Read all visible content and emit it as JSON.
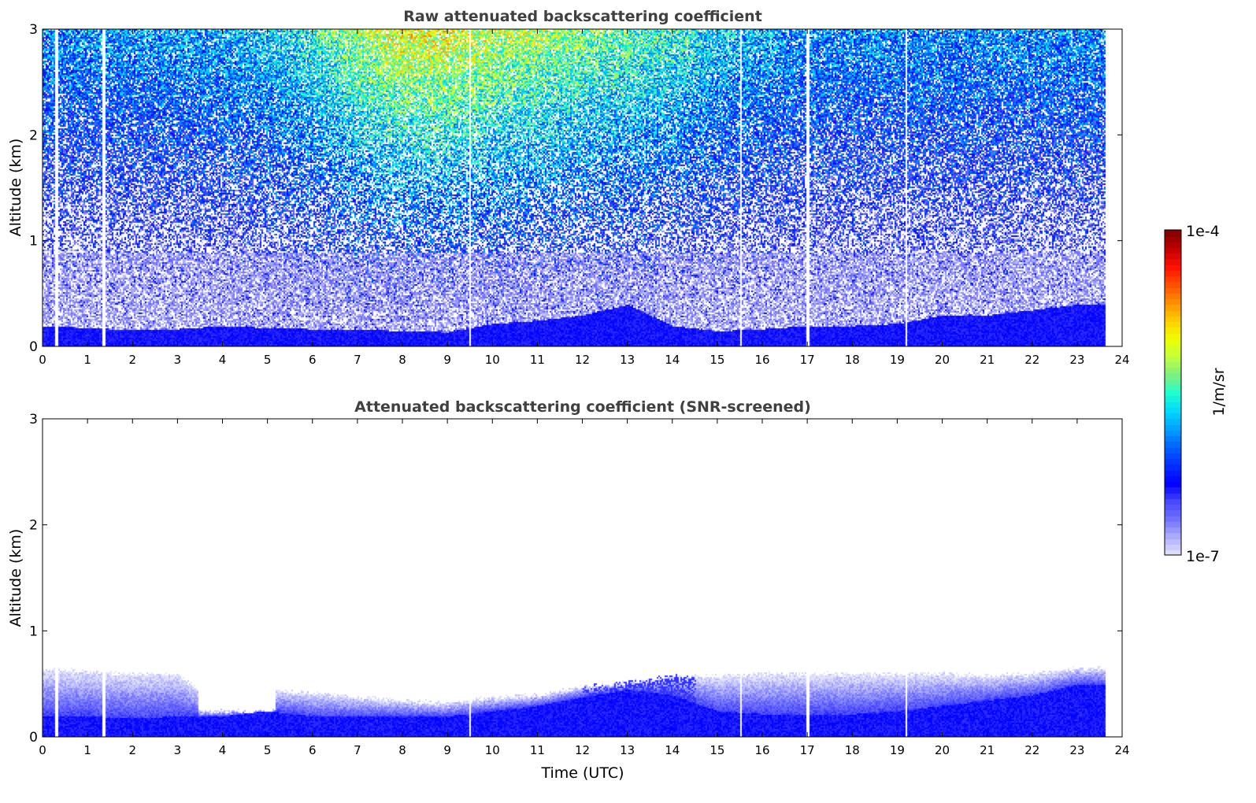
{
  "chart_data": [
    {
      "type": "heatmap",
      "title": "Raw attenuated backscattering coefficient",
      "xlabel": "",
      "ylabel": "Altitude (km)",
      "xlim": [
        0,
        24
      ],
      "ylim": [
        0,
        3
      ],
      "xticks": [
        "0",
        "1",
        "2",
        "3",
        "4",
        "5",
        "6",
        "7",
        "8",
        "9",
        "10",
        "11",
        "12",
        "13",
        "14",
        "15",
        "16",
        "17",
        "18",
        "19",
        "20",
        "21",
        "22",
        "23",
        "24"
      ],
      "yticks": [
        "0",
        "1",
        "2",
        "3"
      ],
      "data_end_hour": 23.6,
      "data_gaps_hours": [
        0.3,
        1.35,
        9.5,
        15.5,
        17.0,
        19.2
      ],
      "dense_layer_top_km_by_hour": [
        0.2,
        0.18,
        0.16,
        0.17,
        0.2,
        0.18,
        0.17,
        0.17,
        0.15,
        0.14,
        0.22,
        0.25,
        0.3,
        0.4,
        0.2,
        0.15,
        0.17,
        0.2,
        0.2,
        0.22,
        0.3,
        0.3,
        0.35,
        0.4
      ],
      "noise_level_log10_at_3km_by_hour": [
        -5.9,
        -5.9,
        -5.9,
        -5.85,
        -5.8,
        -5.7,
        -5.5,
        -5.2,
        -5.0,
        -5.0,
        -5.1,
        -5.2,
        -5.3,
        -5.4,
        -5.5,
        -5.7,
        -5.8,
        -5.9,
        -5.9,
        -5.9,
        -5.9,
        -5.9,
        -5.9,
        -5.9
      ]
    },
    {
      "type": "heatmap",
      "title": "Attenuated backscattering coefficient (SNR-screened)",
      "xlabel": "Time (UTC)",
      "ylabel": "Altitude (km)",
      "xlim": [
        0,
        24
      ],
      "ylim": [
        0,
        3
      ],
      "xticks": [
        "0",
        "1",
        "2",
        "3",
        "4",
        "5",
        "6",
        "7",
        "8",
        "9",
        "10",
        "11",
        "12",
        "13",
        "14",
        "15",
        "16",
        "17",
        "18",
        "19",
        "20",
        "21",
        "22",
        "23",
        "24"
      ],
      "yticks": [
        "0",
        "1",
        "2",
        "3"
      ],
      "data_end_hour": 23.6,
      "data_gaps_hours": [
        0.3,
        1.35,
        9.5,
        15.5,
        17.0,
        19.2
      ],
      "aerosol_layer_top_km_by_hour": [
        0.65,
        0.62,
        0.6,
        0.6,
        0.25,
        0.45,
        0.42,
        0.38,
        0.35,
        0.32,
        0.38,
        0.4,
        0.48,
        0.52,
        0.58,
        0.58,
        0.6,
        0.6,
        0.6,
        0.6,
        0.6,
        0.58,
        0.6,
        0.65
      ],
      "dense_layer_top_km_by_hour": [
        0.2,
        0.2,
        0.18,
        0.2,
        0.2,
        0.25,
        0.2,
        0.2,
        0.2,
        0.2,
        0.25,
        0.3,
        0.38,
        0.45,
        0.4,
        0.25,
        0.22,
        0.22,
        0.22,
        0.25,
        0.3,
        0.35,
        0.4,
        0.5
      ]
    }
  ],
  "colorbar": {
    "label": "1/m/sr",
    "max_label": "1e-4",
    "min_label": "1e-7",
    "scale": "log",
    "range": [
      1e-07,
      0.0001
    ],
    "colors": [
      "#e6e6fa",
      "#b0b0ff",
      "#7474ff",
      "#4848ff",
      "#0000ff",
      "#0030ff",
      "#0060ff",
      "#00a0ff",
      "#00d8ff",
      "#20ffd0",
      "#80f080",
      "#c0ff40",
      "#f0ff00",
      "#ffd000",
      "#ff9000",
      "#ff5000",
      "#ff1000",
      "#c00000",
      "#800000"
    ]
  }
}
